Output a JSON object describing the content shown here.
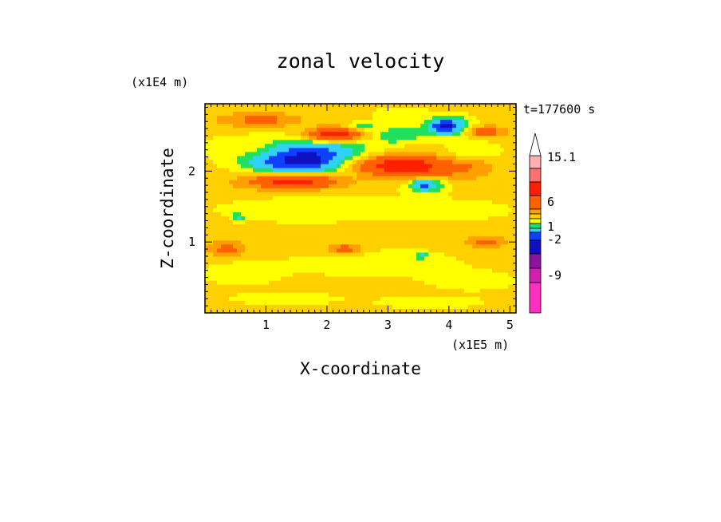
{
  "chart_data": {
    "type": "heatmap",
    "title": "zonal velocity",
    "xlabel": "X-coordinate",
    "ylabel": "Z-coordinate",
    "x_unit": "(x1E5 m)",
    "y_unit": "(x1E4 m)",
    "time_label": "t=177600 s",
    "xlim": [
      0,
      5.1
    ],
    "ylim": [
      0,
      2.95
    ],
    "x_ticks": [
      "1",
      "2",
      "3",
      "4",
      "5"
    ],
    "y_ticks": [
      "1",
      "2"
    ],
    "colorbar": {
      "labels": [
        "15.1",
        "6",
        "1",
        "-2",
        "-9"
      ],
      "levels": [
        -15,
        -12,
        -9,
        -6,
        -4,
        -2,
        -1,
        0,
        1,
        2,
        4,
        6,
        9,
        12,
        15.1
      ],
      "colors": [
        "#ff30c0",
        "#d020b0",
        "#9010a0",
        "#1010c0",
        "#1040ff",
        "#30d0ff",
        "#20e060",
        "#ffff00",
        "#ffd000",
        "#ffa000",
        "#ff6000",
        "#ff2000",
        "#ff7070",
        "#ffb0b0",
        "#ffffff"
      ]
    },
    "field": {
      "background_value": 0.5,
      "features": [
        {
          "x": 2.0,
          "z": 2.15,
          "rx": 1.2,
          "rz": 0.35,
          "value": -2.5
        },
        {
          "x": 1.75,
          "z": 2.15,
          "rx": 0.85,
          "rz": 0.22,
          "value": -6
        },
        {
          "x": 1.6,
          "z": 2.15,
          "rx": 0.6,
          "rz": 0.17,
          "value": -7
        },
        {
          "x": 1.7,
          "z": 2.16,
          "rx": 0.25,
          "rz": 0.07,
          "value": -10
        },
        {
          "x": 3.6,
          "z": 1.82,
          "rx": 0.35,
          "rz": 0.13,
          "value": -4
        },
        {
          "x": 3.6,
          "z": 1.82,
          "rx": 0.15,
          "rz": 0.06,
          "value": -7
        },
        {
          "x": 3.95,
          "z": 2.63,
          "rx": 0.4,
          "rz": 0.15,
          "value": -4
        },
        {
          "x": 3.95,
          "z": 2.63,
          "rx": 0.18,
          "rz": 0.07,
          "value": -7
        },
        {
          "x": 3.05,
          "z": 2.5,
          "rx": 0.5,
          "rz": 0.12,
          "value": -2.5
        },
        {
          "x": 2.55,
          "z": 2.62,
          "rx": 0.25,
          "rz": 0.06,
          "value": -3
        },
        {
          "x": 3.3,
          "z": 2.07,
          "rx": 1.1,
          "rz": 0.22,
          "value": 3
        },
        {
          "x": 3.3,
          "z": 2.07,
          "rx": 0.7,
          "rz": 0.12,
          "value": 5
        },
        {
          "x": 1.5,
          "z": 1.85,
          "rx": 1.0,
          "rz": 0.15,
          "value": 3
        },
        {
          "x": 1.45,
          "z": 1.85,
          "rx": 0.5,
          "rz": 0.07,
          "value": 5
        },
        {
          "x": 2.15,
          "z": 2.52,
          "rx": 0.6,
          "rz": 0.12,
          "value": 3
        },
        {
          "x": 2.1,
          "z": 2.52,
          "rx": 0.3,
          "rz": 0.06,
          "value": 5
        },
        {
          "x": 0.9,
          "z": 2.72,
          "rx": 0.6,
          "rz": 0.1,
          "value": 2.5
        },
        {
          "x": 4.6,
          "z": 2.55,
          "rx": 0.3,
          "rz": 0.08,
          "value": 3
        },
        {
          "x": 4.2,
          "z": 2.1,
          "rx": 0.3,
          "rz": 0.1,
          "value": 2.5
        },
        {
          "x": 0.5,
          "z": 2.35,
          "rx": 0.7,
          "rz": 0.15,
          "value": -0.5
        },
        {
          "x": 1.5,
          "z": 1.45,
          "rx": 1.5,
          "rz": 0.2,
          "value": -0.6
        },
        {
          "x": 3.8,
          "z": 1.45,
          "rx": 1.4,
          "rz": 0.18,
          "value": -0.6
        },
        {
          "x": 4.4,
          "z": 2.3,
          "rx": 0.6,
          "rz": 0.15,
          "value": -0.6
        },
        {
          "x": 3.2,
          "z": 2.8,
          "rx": 0.5,
          "rz": 0.12,
          "value": -0.6
        },
        {
          "x": 2.8,
          "z": 0.7,
          "rx": 1.6,
          "rz": 0.22,
          "value": -0.6
        },
        {
          "x": 0.6,
          "z": 0.55,
          "rx": 0.7,
          "rz": 0.18,
          "value": -0.6
        },
        {
          "x": 4.4,
          "z": 0.45,
          "rx": 0.8,
          "rz": 0.15,
          "value": -0.6
        },
        {
          "x": 1.3,
          "z": 0.2,
          "rx": 1.0,
          "rz": 0.1,
          "value": -0.6
        },
        {
          "x": 3.7,
          "z": 0.15,
          "rx": 1.0,
          "rz": 0.1,
          "value": -0.6
        },
        {
          "x": 0.55,
          "z": 1.35,
          "rx": 0.08,
          "rz": 0.05,
          "value": -3
        },
        {
          "x": 3.55,
          "z": 0.8,
          "rx": 0.08,
          "rz": 0.05,
          "value": -3
        },
        {
          "x": 0.35,
          "z": 0.9,
          "rx": 0.3,
          "rz": 0.1,
          "value": 2.5
        },
        {
          "x": 2.3,
          "z": 0.9,
          "rx": 0.3,
          "rz": 0.08,
          "value": 2.5
        },
        {
          "x": 4.6,
          "z": 1.0,
          "rx": 0.3,
          "rz": 0.08,
          "value": 2.5
        }
      ]
    }
  }
}
